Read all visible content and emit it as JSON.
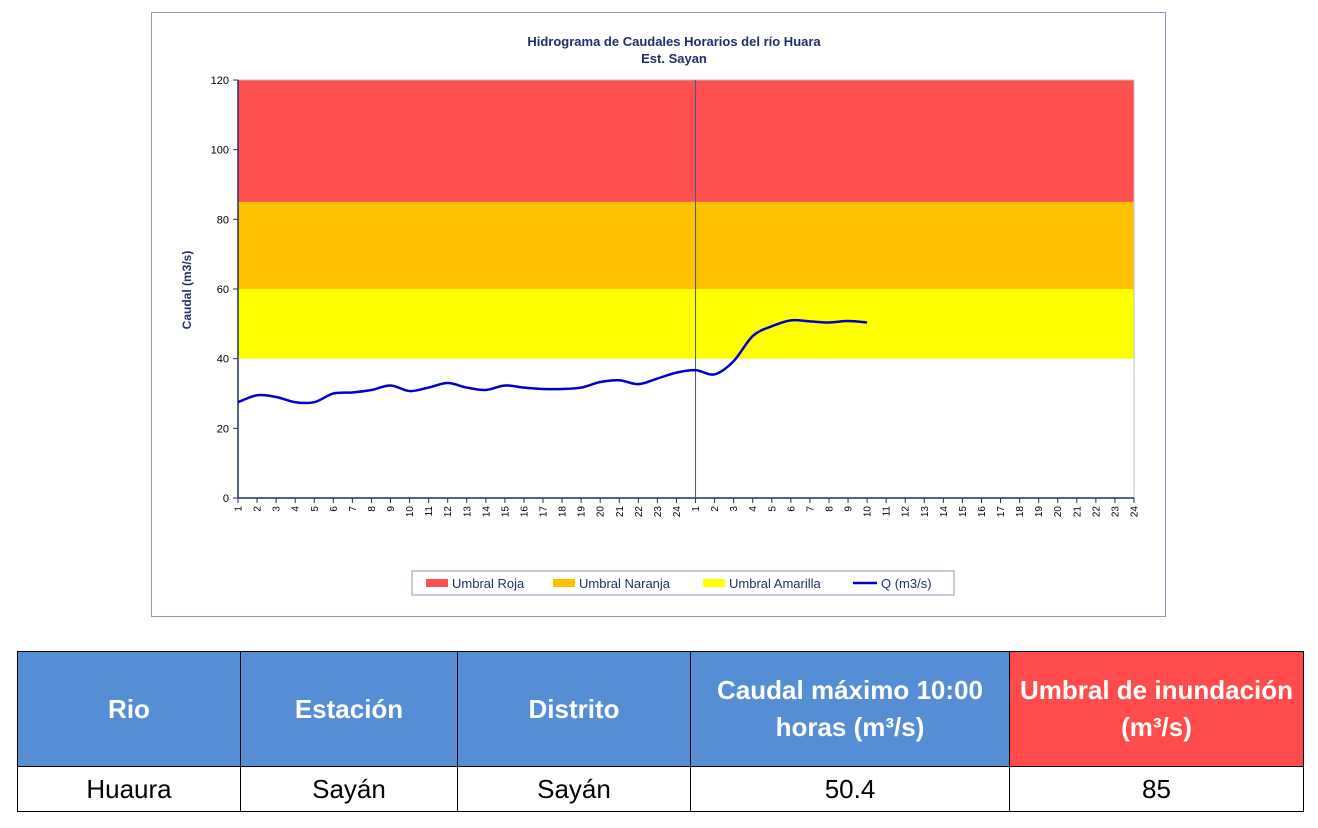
{
  "chart_data": {
    "type": "line",
    "title": "Hidrograma de Caudales Horarios del río Huara",
    "subtitle": "Est. Sayan",
    "ylabel": "Caudal  (m3/s)",
    "xlabel": "",
    "ylim": [
      0,
      120
    ],
    "yticks": [
      "0",
      "20",
      "40",
      "60",
      "80",
      "100",
      "120"
    ],
    "x_ticks": [
      "1",
      "2",
      "3",
      "4",
      "5",
      "6",
      "7",
      "8",
      "9",
      "10",
      "11",
      "12",
      "13",
      "14",
      "15",
      "16",
      "17",
      "18",
      "19",
      "20",
      "21",
      "22",
      "23",
      "24",
      "1",
      "2",
      "3",
      "4",
      "5",
      "6",
      "7",
      "8",
      "9",
      "10",
      "11",
      "12",
      "13",
      "14",
      "15",
      "16",
      "17",
      "18",
      "19",
      "20",
      "21",
      "22",
      "23",
      "24"
    ],
    "bands": [
      {
        "name": "Umbral Roja",
        "from": 85,
        "to": 120,
        "color": "#ff5050"
      },
      {
        "name": "Umbral Naranja",
        "from": 60,
        "to": 85,
        "color": "#ffc000"
      },
      {
        "name": "Umbral Amarilla",
        "from": 40,
        "to": 60,
        "color": "#ffff00"
      }
    ],
    "series": [
      {
        "name": "Q (m3/s)",
        "color": "#0000cc",
        "values": [
          27.5,
          29.5,
          29,
          27.5,
          27.5,
          30,
          30.3,
          31,
          32.3,
          30.7,
          31.7,
          33,
          31.7,
          31,
          32.3,
          31.7,
          31.3,
          31.3,
          31.7,
          33.3,
          33.8,
          32.7,
          34.3,
          36,
          36.7,
          35.5,
          39.3,
          46.5,
          49.3,
          51,
          50.7,
          50.4,
          50.8,
          50.4
        ]
      }
    ],
    "legend_position": "bottom",
    "grid": false
  },
  "table": {
    "headers": [
      "Rio",
      "Estación",
      "Distrito",
      "Caudal máximo 10:00 horas (m³/s)",
      "Umbral de inundación (m³/s)"
    ],
    "rows": [
      [
        "Huaura",
        "Sayán",
        "Sayán",
        "50.4",
        "85"
      ]
    ]
  }
}
